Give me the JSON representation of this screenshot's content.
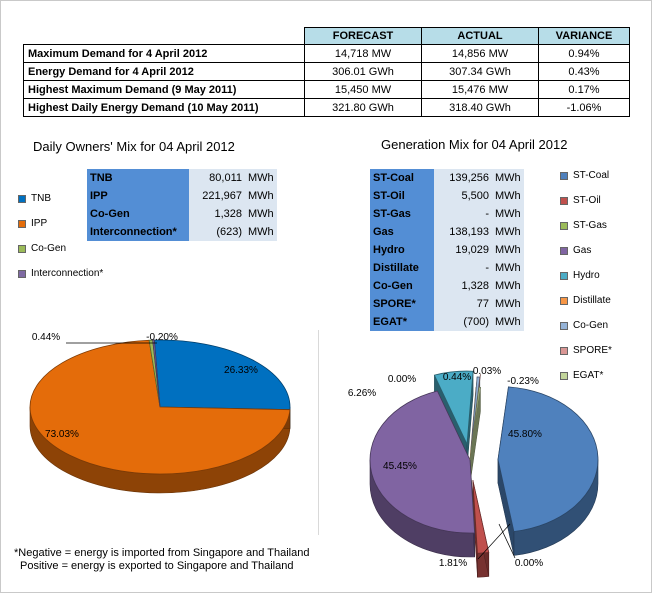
{
  "summary": {
    "headers": [
      "",
      "FORECAST",
      "ACTUAL",
      "VARIANCE"
    ],
    "rows": [
      {
        "label": "Maximum Demand for 4 April 2012",
        "forecast": "14,718  MW",
        "actual": "14,856  MW",
        "variance": "0.94%"
      },
      {
        "label": "Energy Demand for 4 April 2012",
        "forecast": "306.01  GWh",
        "actual": "307.34  GWh",
        "variance": "0.43%"
      },
      {
        "label": "Highest Maximum Demand (9 May 2011)",
        "forecast": "15,450  MW",
        "actual": "15,476  MW",
        "variance": "0.17%"
      },
      {
        "label": "Highest Daily Energy Demand (10 May 2011)",
        "forecast": "321.80  GWh",
        "actual": "318.40  GWh",
        "variance": "-1.06%"
      }
    ]
  },
  "owners": {
    "title": "Daily Owners' Mix for 04 April 2012",
    "table": [
      {
        "name": "TNB",
        "value": "80,011",
        "unit": "MWh"
      },
      {
        "name": "IPP",
        "value": "221,967",
        "unit": "MWh"
      },
      {
        "name": "Co-Gen",
        "value": "1,328",
        "unit": "MWh"
      },
      {
        "name": "Interconnection*",
        "value": "(623)",
        "unit": "MWh"
      }
    ]
  },
  "generation": {
    "title": "Generation Mix for 04 April 2012",
    "table": [
      {
        "name": "ST-Coal",
        "value": "139,256",
        "unit": "MWh"
      },
      {
        "name": "ST-Oil",
        "value": "5,500",
        "unit": "MWh"
      },
      {
        "name": "ST-Gas",
        "value": "-",
        "unit": "MWh"
      },
      {
        "name": "Gas",
        "value": "138,193",
        "unit": "MWh"
      },
      {
        "name": "Hydro",
        "value": "19,029",
        "unit": "MWh"
      },
      {
        "name": "Distillate",
        "value": "-",
        "unit": "MWh"
      },
      {
        "name": "Co-Gen",
        "value": "1,328",
        "unit": "MWh"
      },
      {
        "name": "SPORE*",
        "value": "77",
        "unit": "MWh"
      },
      {
        "name": "EGAT*",
        "value": "(700)",
        "unit": "MWh"
      }
    ]
  },
  "footnote": {
    "line1": "*Negative = energy is imported from Singapore and Thailand",
    "line2": "Positive = energy is exported to Singapore and Thailand"
  },
  "chart_data": [
    {
      "type": "pie",
      "title": "Daily Owners' Mix for 04 April 2012",
      "categories": [
        "TNB",
        "IPP",
        "Co-Gen",
        "Interconnection*"
      ],
      "values": [
        26.33,
        73.03,
        0.44,
        -0.2
      ],
      "labels": [
        "26.33%",
        "73.03%",
        "0.44%",
        "-0.20%"
      ],
      "colors": [
        "#0070c0",
        "#e46c0a",
        "#9bbb59",
        "#7f6aa3"
      ],
      "legend": "left"
    },
    {
      "type": "pie",
      "title": "Generation Mix for 04 April 2012",
      "categories": [
        "ST-Coal",
        "ST-Oil",
        "ST-Gas",
        "Gas",
        "Hydro",
        "Distillate",
        "Co-Gen",
        "SPORE*",
        "EGAT*"
      ],
      "values": [
        45.8,
        1.81,
        0.0,
        45.45,
        6.26,
        0.0,
        0.44,
        0.03,
        -0.23
      ],
      "labels": [
        "45.80%",
        "1.81%",
        "0.00%",
        "45.45%",
        "6.26%",
        "0.00%",
        "0.44%",
        "0.03%",
        "-0.23%"
      ],
      "colors": [
        "#4f81bd",
        "#c0504d",
        "#9bbb59",
        "#8064a2",
        "#4bacc6",
        "#f79646",
        "#95b3d7",
        "#d99694",
        "#c3d69b"
      ],
      "legend": "right"
    }
  ]
}
